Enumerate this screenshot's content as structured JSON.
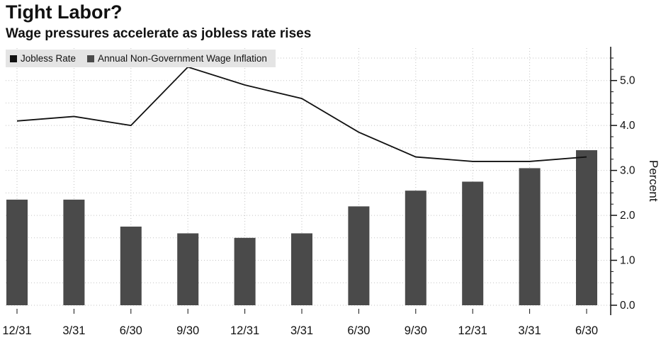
{
  "chart_data": {
    "type": "bar",
    "title": "Tight Labor?",
    "subtitle": "Wage pressures accelerate as jobless rate rises",
    "ylabel": "Percent",
    "categories": [
      "12/31",
      "3/31",
      "6/30",
      "9/30",
      "12/31",
      "3/31",
      "6/30",
      "9/30",
      "12/31",
      "3/31",
      "6/30"
    ],
    "series": [
      {
        "name": "Jobless Rate",
        "type": "line",
        "color": "#111111",
        "values": [
          4.1,
          4.2,
          4.0,
          5.3,
          4.9,
          4.6,
          3.85,
          3.3,
          3.2,
          3.2,
          3.3
        ]
      },
      {
        "name": "Annual Non-Government Wage Inflation",
        "type": "bar",
        "color": "#4a4a4a",
        "values": [
          2.35,
          2.35,
          1.75,
          1.6,
          1.5,
          1.6,
          2.2,
          2.55,
          2.75,
          3.05,
          3.45
        ]
      }
    ],
    "ylim": [
      0,
      5.72
    ],
    "yticks": [
      0,
      1,
      2,
      3,
      4,
      5
    ],
    "grid": true,
    "legend_position": "top-left",
    "axis_side": "right"
  },
  "colors": {
    "background": "#ffffff",
    "grid": "#c2c2c2",
    "axis": "#111111",
    "legend_bg": "#e4e4e4"
  }
}
